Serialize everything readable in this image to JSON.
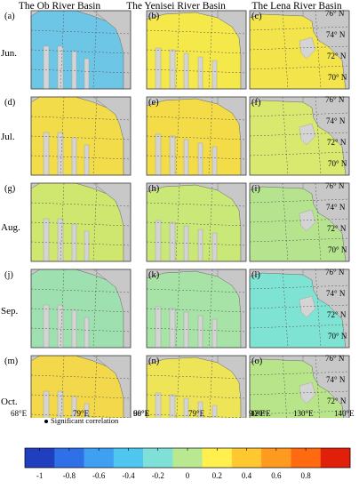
{
  "column_titles": [
    "The Ob River Basin",
    "The Yenisei River Basin",
    "The Lena River Basin"
  ],
  "row_labels": [
    "Jun.",
    "Jul.",
    "Aug.",
    "Sep.",
    "Oct."
  ],
  "panel_letters": [
    [
      "(a)",
      "(b)",
      "(c)"
    ],
    [
      "(d)",
      "(e)",
      "(f)"
    ],
    [
      "(g)",
      "(h)",
      "(i)"
    ],
    [
      "(j)",
      "(k)",
      "(l)"
    ],
    [
      "(m)",
      "(n)",
      "(o)"
    ]
  ],
  "lat_labels": [
    "76° N",
    "74° N",
    "72° N",
    "70° N"
  ],
  "lon_labels": {
    "ob": [
      "68°E",
      "79°E",
      "90°E"
    ],
    "yenisei": [
      "68°E",
      "79°E",
      "90°E"
    ],
    "lena": [
      "120°E",
      "130°E",
      "140°E"
    ]
  },
  "legend": {
    "significance_label": "Significant correlation",
    "ticks": [
      "-1",
      "-0.8",
      "-0.6",
      "-0.4",
      "-0.2",
      "0",
      "0.2",
      "0.4",
      "0.6",
      "0.8"
    ],
    "colors": [
      "#1f3fbf",
      "#2f6fe8",
      "#3f9ff0",
      "#4fc6f0",
      "#7fe0d8",
      "#b8e88f",
      "#fff04f",
      "#ffc830",
      "#ff9a20",
      "#ff6a10",
      "#e0200a"
    ]
  },
  "panel_fill": [
    [
      "#6ec6e6",
      "#f4e84a",
      "#f2e44a"
    ],
    [
      "#f2dc4a",
      "#f3dc48",
      "#d9e86e"
    ],
    [
      "#cfe76e",
      "#c9e878",
      "#b6e38e"
    ],
    [
      "#9fe0b0",
      "#a7e2a7",
      "#7fe3d3"
    ],
    [
      "#f2d84a",
      "#eee458",
      "#b9e58a"
    ]
  ],
  "colors": {
    "land_gray": "#c8c8c8",
    "frame": "#444444",
    "grid": "#555555"
  }
}
